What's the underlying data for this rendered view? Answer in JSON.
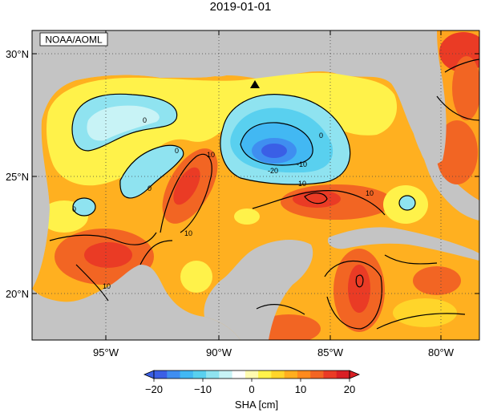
{
  "title": "2019-01-01",
  "credit": "NOAA/AOML",
  "map": {
    "lat_labels": [
      "30°N",
      "25°N",
      "20°N"
    ],
    "lon_labels": [
      "95°W",
      "90°W",
      "85°W",
      "80°W"
    ],
    "marker": "triangle-marker",
    "contour_labels": [
      "0",
      "0",
      "0",
      "0",
      "0",
      "10",
      "10",
      "10",
      "10",
      "10",
      "-20",
      "-10"
    ]
  },
  "colorbar": {
    "label": "SHA [cm]",
    "ticks": [
      "-20",
      "-10",
      "0",
      "10",
      "20"
    ],
    "range": [
      -20,
      20
    ],
    "colors": [
      "#3a5fe6",
      "#3f8ef0",
      "#42b8f3",
      "#59d0ef",
      "#8fe3f0",
      "#c8f3f6",
      "#ffffff",
      "#fffbb0",
      "#fff24a",
      "#ffd52a",
      "#ffae1f",
      "#ff8a1d",
      "#f26523",
      "#ea3b25",
      "#d91f24"
    ]
  },
  "colors": {
    "land": "#c4c4c4",
    "ocean_base": "#ffb020"
  }
}
